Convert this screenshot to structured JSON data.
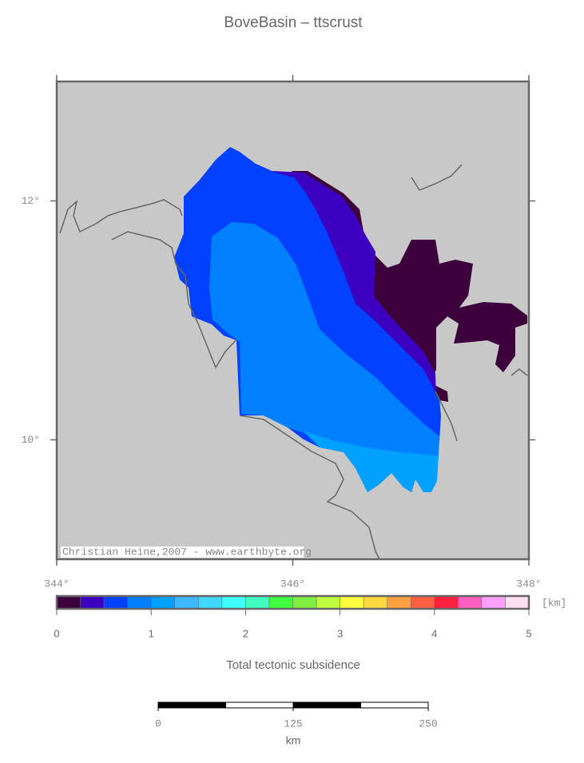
{
  "title": "BoveBasin – ttscrust",
  "map": {
    "xlim": [
      344,
      348
    ],
    "ylim": [
      9,
      13
    ],
    "xticks": [
      {
        "value": 344,
        "label": "344°"
      },
      {
        "value": 346,
        "label": "346°"
      },
      {
        "value": 348,
        "label": "348°"
      }
    ],
    "yticks": [
      {
        "value": 10,
        "label": "10°"
      },
      {
        "value": 12,
        "label": "12°"
      }
    ],
    "credit": "Christian Heine,2007 - www.earthbyte.org"
  },
  "colorbar": {
    "colors": [
      "#3c003c",
      "#3c00c0",
      "#0040ff",
      "#0080ff",
      "#00a0ff",
      "#40b8ff",
      "#40d8ff",
      "#40ffff",
      "#40ffc0",
      "#40ff40",
      "#80f040",
      "#c0ff40",
      "#ffff40",
      "#ffd840",
      "#ffa040",
      "#ff6040",
      "#ff2040",
      "#ff60c0",
      "#ffa0ff",
      "#ffe0f0"
    ],
    "lim": [
      0,
      5
    ],
    "ticks": [
      0,
      1,
      2,
      3,
      4,
      5
    ],
    "unit": "[km]",
    "label": "Total tectonic subsidence"
  },
  "scale_bar": {
    "lim": [
      0,
      250
    ],
    "ticks": [
      0,
      125,
      250
    ],
    "unit": "km"
  }
}
